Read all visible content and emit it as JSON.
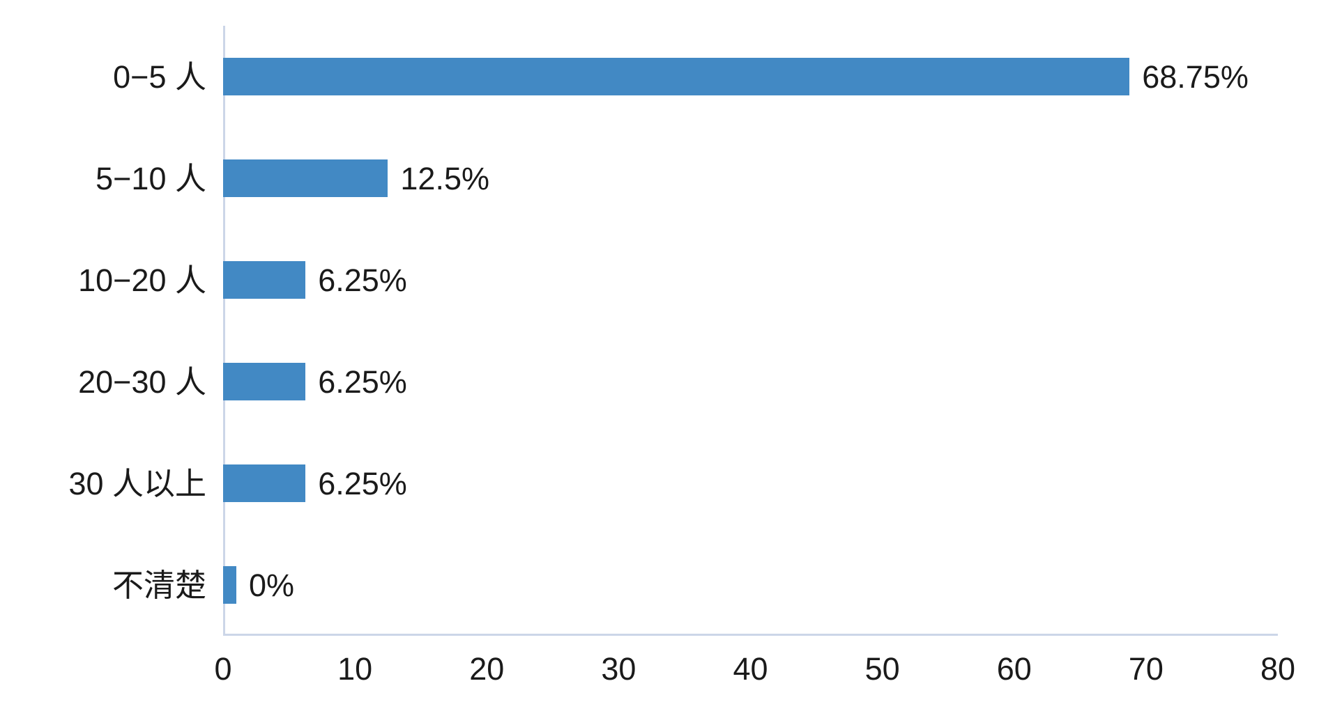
{
  "chart_data": {
    "type": "bar",
    "orientation": "horizontal",
    "title": "",
    "xlabel": "",
    "ylabel": "",
    "categories": [
      "0−5 人",
      "5−10 人",
      "10−20 人",
      "20−30 人",
      "30 人以上",
      "不清楚"
    ],
    "values": [
      68.75,
      12.5,
      6.25,
      6.25,
      6.25,
      0
    ],
    "value_labels": [
      "68.75%",
      "12.5%",
      "6.25%",
      "6.25%",
      "6.25%",
      "0%"
    ],
    "xlim": [
      0,
      80
    ],
    "x_ticks": [
      "0",
      "10",
      "20",
      "30",
      "40",
      "50",
      "60",
      "70",
      "80"
    ],
    "grid": false,
    "legend": "none",
    "bar_color": "#4289c4",
    "axis_line_color": "#ccd6e8",
    "text_color": "#1a1a1a"
  }
}
